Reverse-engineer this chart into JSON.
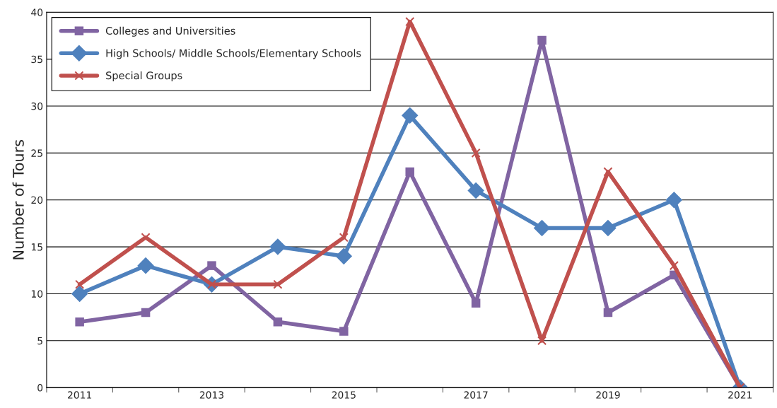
{
  "chart_data": {
    "type": "line",
    "ylabel": "Number of Tours",
    "categories": [
      "2011",
      null,
      "2013",
      null,
      "2015",
      null,
      "2017",
      null,
      "2019",
      null,
      "2021"
    ],
    "series": [
      {
        "name": "Colleges and Universities",
        "color": "#8064a2",
        "marker": "square",
        "values": [
          7,
          8,
          13,
          7,
          6,
          23,
          9,
          37,
          8,
          12,
          0
        ]
      },
      {
        "name": "High Schools/ Middle Schools/Elementary Schools",
        "color": "#4f81bd",
        "marker": "diamond",
        "values": [
          10,
          13,
          11,
          15,
          14,
          29,
          21,
          17,
          17,
          20,
          0
        ]
      },
      {
        "name": "Special Groups",
        "color": "#c0504d",
        "marker": "cross",
        "values": [
          11,
          16,
          11,
          11,
          16,
          39,
          25,
          5,
          23,
          13,
          0
        ]
      }
    ],
    "ylim": [
      0,
      40
    ],
    "yticks": [
      0,
      5,
      10,
      15,
      20,
      25,
      30,
      35,
      40
    ],
    "grid": "y",
    "legend": "top left",
    "line_style": "solid"
  }
}
